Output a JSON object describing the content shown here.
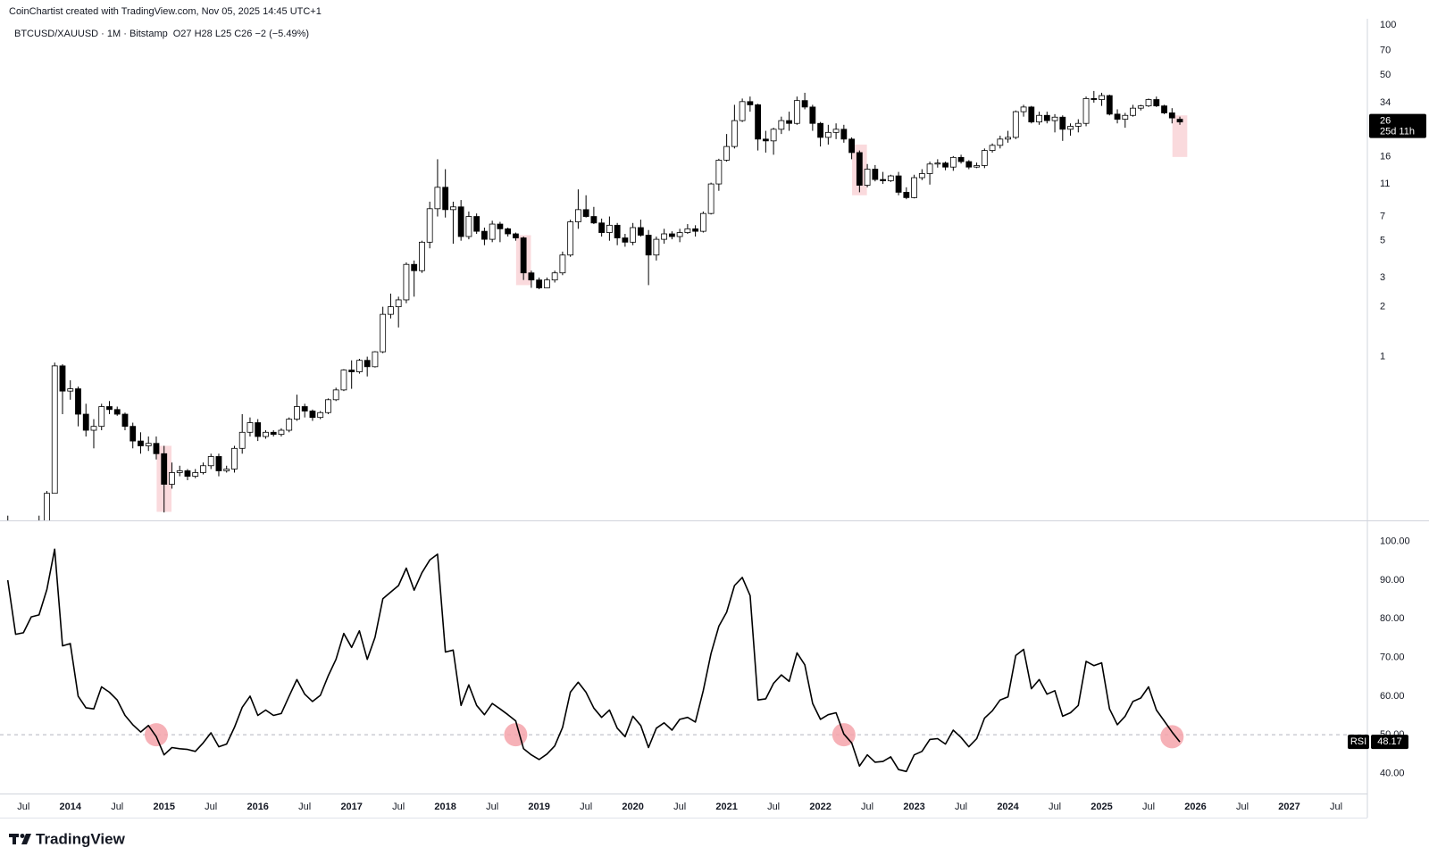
{
  "header": "CoinChartist created with TradingView.com, Nov 05, 2025 14:45 UTC+1",
  "footer_logo": "TradingView",
  "chart_data": {
    "type": "candlestick",
    "title": "BTCUSD/XAUUSD · 1M · Bitstamp",
    "ohlc_label": "O27  H28  L25  C26  −2 (−5.49%)",
    "countdown": "25d 11h",
    "log": true,
    "grid": false,
    "up_color": "#ffffff",
    "down_color": "#000000",
    "highlight_color": "#f9d3d7",
    "ylim": [
      0.103,
      109
    ],
    "yticks": [
      1,
      2,
      3,
      5,
      7,
      11,
      16,
      34,
      50,
      70,
      100
    ],
    "xlim": [
      "2013-04",
      "2027-11"
    ],
    "xticks": [
      {
        "value": "2013-07",
        "label": "Jul"
      },
      {
        "value": "2014-01",
        "label": "2014"
      },
      {
        "value": "2014-07",
        "label": "Jul"
      },
      {
        "value": "2015-01",
        "label": "2015"
      },
      {
        "value": "2015-07",
        "label": "Jul"
      },
      {
        "value": "2016-01",
        "label": "2016"
      },
      {
        "value": "2016-07",
        "label": "Jul"
      },
      {
        "value": "2017-01",
        "label": "2017"
      },
      {
        "value": "2017-07",
        "label": "Jul"
      },
      {
        "value": "2018-01",
        "label": "2018"
      },
      {
        "value": "2018-07",
        "label": "Jul"
      },
      {
        "value": "2019-01",
        "label": "2019"
      },
      {
        "value": "2019-07",
        "label": "Jul"
      },
      {
        "value": "2020-01",
        "label": "2020"
      },
      {
        "value": "2020-07",
        "label": "Jul"
      },
      {
        "value": "2021-01",
        "label": "2021"
      },
      {
        "value": "2021-07",
        "label": "Jul"
      },
      {
        "value": "2022-01",
        "label": "2022"
      },
      {
        "value": "2022-07",
        "label": "Jul"
      },
      {
        "value": "2023-01",
        "label": "2023"
      },
      {
        "value": "2023-07",
        "label": "Jul"
      },
      {
        "value": "2024-01",
        "label": "2024"
      },
      {
        "value": "2024-07",
        "label": "Jul"
      },
      {
        "value": "2025-01",
        "label": "2025"
      },
      {
        "value": "2025-07",
        "label": "Jul"
      },
      {
        "value": "2026-01",
        "label": "2026"
      },
      {
        "value": "2026-07",
        "label": "Jul"
      },
      {
        "value": "2027-01",
        "label": "2027"
      },
      {
        "value": "2027-07",
        "label": "Jul"
      }
    ],
    "x": [
      "2013-05",
      "2013-06",
      "2013-07",
      "2013-08",
      "2013-09",
      "2013-10",
      "2013-11",
      "2013-12",
      "2014-01",
      "2014-02",
      "2014-03",
      "2014-04",
      "2014-05",
      "2014-06",
      "2014-07",
      "2014-08",
      "2014-09",
      "2014-10",
      "2014-11",
      "2014-12",
      "2015-01",
      "2015-02",
      "2015-03",
      "2015-04",
      "2015-05",
      "2015-06",
      "2015-07",
      "2015-08",
      "2015-09",
      "2015-10",
      "2015-11",
      "2015-12",
      "2016-01",
      "2016-02",
      "2016-03",
      "2016-04",
      "2016-05",
      "2016-06",
      "2016-07",
      "2016-08",
      "2016-09",
      "2016-10",
      "2016-11",
      "2016-12",
      "2017-01",
      "2017-02",
      "2017-03",
      "2017-04",
      "2017-05",
      "2017-06",
      "2017-07",
      "2017-08",
      "2017-09",
      "2017-10",
      "2017-11",
      "2017-12",
      "2018-01",
      "2018-02",
      "2018-03",
      "2018-04",
      "2018-05",
      "2018-06",
      "2018-07",
      "2018-08",
      "2018-09",
      "2018-10",
      "2018-11",
      "2018-12",
      "2019-01",
      "2019-02",
      "2019-03",
      "2019-04",
      "2019-05",
      "2019-06",
      "2019-07",
      "2019-08",
      "2019-09",
      "2019-10",
      "2019-11",
      "2019-12",
      "2020-01",
      "2020-02",
      "2020-03",
      "2020-04",
      "2020-05",
      "2020-06",
      "2020-07",
      "2020-08",
      "2020-09",
      "2020-10",
      "2020-11",
      "2020-12",
      "2021-01",
      "2021-02",
      "2021-03",
      "2021-04",
      "2021-05",
      "2021-06",
      "2021-07",
      "2021-08",
      "2021-09",
      "2021-10",
      "2021-11",
      "2021-12",
      "2022-01",
      "2022-02",
      "2022-03",
      "2022-04",
      "2022-05",
      "2022-06",
      "2022-07",
      "2022-08",
      "2022-09",
      "2022-10",
      "2022-11",
      "2022-12",
      "2023-01",
      "2023-02",
      "2023-03",
      "2023-04",
      "2023-05",
      "2023-06",
      "2023-07",
      "2023-08",
      "2023-09",
      "2023-10",
      "2023-11",
      "2023-12",
      "2024-01",
      "2024-02",
      "2024-03",
      "2024-04",
      "2024-05",
      "2024-06",
      "2024-07",
      "2024-08",
      "2024-09",
      "2024-10",
      "2024-11",
      "2024-12",
      "2025-01",
      "2025-02",
      "2025-03",
      "2025-04",
      "2025-05",
      "2025-06",
      "2025-07",
      "2025-08",
      "2025-09",
      "2025-10",
      "2025-11"
    ],
    "open": [
      0.095,
      0.087,
      0.079,
      0.08,
      0.1,
      0.1,
      0.15,
      0.88,
      0.62,
      0.64,
      0.45,
      0.36,
      0.38,
      0.5,
      0.48,
      0.45,
      0.38,
      0.31,
      0.29,
      0.3,
      0.26,
      0.17,
      0.2,
      0.205,
      0.19,
      0.2,
      0.22,
      0.25,
      0.205,
      0.21,
      0.28,
      0.35,
      0.4,
      0.33,
      0.35,
      0.34,
      0.36,
      0.42,
      0.5,
      0.47,
      0.43,
      0.46,
      0.55,
      0.63,
      0.83,
      0.81,
      0.95,
      0.87,
      1.07,
      1.8,
      2.0,
      2.2,
      3.6,
      3.3,
      4.9,
      7.8,
      10.5,
      7.7,
      8.0,
      5.3,
      7.0,
      5.7,
      5.1,
      6.3,
      5.9,
      5.5,
      5.2,
      3.2,
      2.9,
      2.6,
      2.9,
      3.2,
      4.1,
      6.5,
      7.7,
      7.0,
      6.4,
      5.6,
      6.2,
      5.2,
      4.9,
      6.0,
      5.4,
      4.1,
      5.1,
      5.5,
      5.3,
      5.6,
      5.9,
      5.7,
      7.3,
      11.0,
      15.3,
      18.5,
      26.5,
      34.5,
      33,
      20.5,
      20,
      23.5,
      26.5,
      25.5,
      35,
      32,
      25.5,
      21,
      22.5,
      23.5,
      20.5,
      17,
      10.8,
      13.5,
      11.7,
      11.5,
      12.3,
      9.8,
      9.1,
      12.0,
      12.7,
      14.5,
      14.7,
      13.9,
      15.9,
      15,
      13.9,
      14.2,
      17.5,
      18.8,
      20.5,
      21,
      30,
      32,
      26,
      28.5,
      26.5,
      27.8,
      23.5,
      24.5,
      25.5,
      36,
      35.5,
      37.5,
      29,
      27,
      28.5,
      31.5,
      32.5,
      35.5,
      32.5,
      29.5,
      27
    ],
    "high": [
      0.11,
      0.1,
      0.085,
      0.1,
      0.11,
      0.155,
      0.92,
      0.9,
      0.72,
      0.66,
      0.52,
      0.42,
      0.52,
      0.54,
      0.5,
      0.46,
      0.4,
      0.35,
      0.33,
      0.33,
      0.29,
      0.23,
      0.22,
      0.21,
      0.21,
      0.23,
      0.26,
      0.26,
      0.22,
      0.29,
      0.45,
      0.43,
      0.42,
      0.36,
      0.36,
      0.37,
      0.43,
      0.59,
      0.52,
      0.48,
      0.47,
      0.56,
      0.65,
      0.84,
      0.95,
      0.97,
      1.0,
      1.08,
      2.0,
      2.4,
      2.3,
      3.7,
      3.8,
      5.0,
      8.6,
      15.5,
      13.5,
      8.6,
      8.8,
      7.5,
      7.3,
      6.0,
      6.6,
      6.5,
      6.0,
      5.6,
      5.3,
      3.3,
      3.0,
      3.0,
      3.3,
      4.3,
      6.7,
      10.2,
      9.4,
      8.0,
      6.8,
      7.0,
      6.4,
      5.5,
      6.4,
      6.7,
      5.8,
      5.3,
      5.9,
      5.7,
      5.9,
      6.3,
      6.2,
      7.5,
      11.2,
      15.6,
      22,
      33,
      36,
      37,
      33.5,
      23,
      24,
      28,
      30,
      37,
      39,
      33,
      26,
      25,
      25.5,
      25,
      21,
      17.5,
      14.5,
      14.3,
      13,
      12.5,
      13,
      10.5,
      12.5,
      13.5,
      15,
      15.5,
      15,
      16.2,
      16.5,
      15.3,
      14.8,
      18,
      19.3,
      21.5,
      23,
      30.5,
      33,
      32.5,
      30,
      30,
      29,
      28.5,
      25.5,
      27,
      37,
      40,
      39,
      38,
      31,
      29.5,
      33,
      33,
      36,
      37,
      33,
      31.5,
      28
    ],
    "low": [
      0.08,
      0.07,
      0.06,
      0.075,
      0.09,
      0.09,
      0.15,
      0.45,
      0.55,
      0.38,
      0.33,
      0.28,
      0.36,
      0.45,
      0.44,
      0.36,
      0.28,
      0.26,
      0.27,
      0.24,
      0.115,
      0.16,
      0.19,
      0.18,
      0.185,
      0.195,
      0.21,
      0.19,
      0.2,
      0.2,
      0.26,
      0.33,
      0.31,
      0.32,
      0.33,
      0.33,
      0.35,
      0.41,
      0.43,
      0.41,
      0.42,
      0.45,
      0.54,
      0.62,
      0.64,
      0.79,
      0.76,
      0.86,
      1.05,
      1.7,
      1.5,
      2.1,
      2.3,
      3.2,
      4.5,
      7.0,
      6.9,
      4.8,
      5.0,
      5.1,
      5.5,
      4.7,
      4.9,
      4.9,
      5.3,
      5.0,
      2.9,
      2.6,
      2.55,
      2.6,
      2.8,
      3.1,
      4.0,
      5.9,
      6.9,
      6.3,
      5.3,
      5.0,
      4.7,
      4.6,
      4.7,
      5.3,
      2.7,
      3.8,
      4.8,
      5.1,
      4.9,
      5.5,
      5.3,
      5.6,
      7.2,
      10.0,
      15,
      18,
      26,
      30,
      17.5,
      17,
      16.5,
      22,
      23,
      25,
      31,
      23,
      18.5,
      19,
      20.5,
      19.5,
      15.5,
      9.8,
      10.5,
      11.4,
      11,
      11.3,
      9.4,
      8.9,
      9.0,
      11.6,
      10.9,
      13.8,
      13.3,
      13.2,
      14.6,
      13.5,
      13.7,
      13.7,
      17,
      18,
      19.5,
      20.5,
      28,
      25.5,
      25,
      25.5,
      22.5,
      20,
      21.5,
      22.5,
      24.5,
      34,
      32.5,
      28.5,
      25.5,
      24,
      28,
      30.5,
      32,
      32,
      29,
      25.5,
      25
    ],
    "close": [
      0.087,
      0.079,
      0.08,
      0.1,
      0.1,
      0.15,
      0.88,
      0.62,
      0.64,
      0.45,
      0.36,
      0.38,
      0.5,
      0.48,
      0.45,
      0.38,
      0.31,
      0.29,
      0.3,
      0.26,
      0.17,
      0.2,
      0.205,
      0.19,
      0.2,
      0.22,
      0.25,
      0.205,
      0.21,
      0.28,
      0.35,
      0.4,
      0.33,
      0.35,
      0.34,
      0.36,
      0.42,
      0.5,
      0.47,
      0.43,
      0.46,
      0.55,
      0.63,
      0.83,
      0.81,
      0.95,
      0.87,
      1.07,
      1.8,
      2.0,
      2.2,
      3.6,
      3.3,
      4.9,
      7.8,
      10.5,
      7.7,
      8.0,
      5.3,
      7.0,
      5.7,
      5.1,
      6.3,
      5.9,
      5.5,
      5.2,
      3.2,
      2.9,
      2.6,
      2.9,
      3.2,
      4.1,
      6.5,
      7.7,
      7.0,
      6.4,
      5.6,
      6.2,
      5.2,
      4.9,
      6.0,
      5.4,
      4.1,
      5.1,
      5.5,
      5.3,
      5.6,
      5.9,
      5.7,
      7.3,
      11.0,
      15.3,
      18.5,
      26.5,
      34.5,
      33,
      20.5,
      20,
      23.5,
      26.5,
      25.5,
      35,
      32,
      25.5,
      21,
      22.5,
      23.5,
      20.5,
      17,
      10.8,
      13.5,
      11.7,
      11.5,
      12.3,
      9.8,
      9.1,
      12.0,
      12.7,
      14.5,
      14.7,
      13.9,
      15.9,
      15,
      13.9,
      14.2,
      17.5,
      18.8,
      20.5,
      21,
      30,
      32,
      26,
      28.5,
      26.5,
      27.8,
      23.5,
      24.5,
      25.5,
      36,
      35.5,
      37.5,
      29,
      27,
      28.5,
      31.5,
      32.5,
      35.5,
      32.5,
      29.5,
      27.5,
      26
    ],
    "highlight_boxes": [
      {
        "x0": "2015-01",
        "x1": "2015-01",
        "low": 0.116,
        "high": 0.29
      },
      {
        "x0": "2018-11",
        "x1": "2018-11",
        "low": 2.7,
        "high": 5.4
      },
      {
        "x0": "2022-06",
        "x1": "2022-06",
        "low": 9.4,
        "high": 19
      },
      {
        "x0": "2025-11",
        "x1": "2025-11",
        "low": 16,
        "high": 28.5
      }
    ],
    "rsi": {
      "type": "line",
      "name": "RSI",
      "color": "#000000",
      "ylim": [
        34.8,
        105
      ],
      "yticks": [
        {
          "value": 40,
          "label": "40.00"
        },
        {
          "value": 50,
          "label": "50.00"
        },
        {
          "value": 60,
          "label": "60.00"
        },
        {
          "value": 70,
          "label": "70.00"
        },
        {
          "value": 80,
          "label": "80.00"
        },
        {
          "value": 90,
          "label": "90.00"
        },
        {
          "value": 100,
          "label": "100.00"
        }
      ],
      "reference_line": 50,
      "marker_color": "#f4a3aa",
      "markers": [
        {
          "x": "2014-12",
          "y": 50
        },
        {
          "x": "2018-10",
          "y": 50
        },
        {
          "x": "2022-04",
          "y": 50
        },
        {
          "x": "2025-10",
          "y": 49.5
        }
      ],
      "values": [
        90,
        76,
        76.4,
        80.5,
        81,
        87.6,
        98,
        73,
        73.6,
        60,
        57,
        56.7,
        62.4,
        61,
        59,
        55,
        52.6,
        50.7,
        52.4,
        49.5,
        44.8,
        46.7,
        46.4,
        46.2,
        45.7,
        47.9,
        50.5,
        46.9,
        47.6,
        51.9,
        57.1,
        60,
        55,
        56.4,
        55,
        55.5,
        60,
        64.3,
        60.5,
        58.6,
        60.2,
        65.2,
        69.5,
        76.2,
        72.6,
        76.9,
        69.5,
        75.2,
        85.2,
        86.9,
        88.6,
        93.1,
        87.4,
        91.9,
        95.2,
        96.7,
        71.4,
        71.9,
        57.6,
        62.9,
        57.6,
        55.2,
        58.1,
        56.7,
        55.2,
        53.6,
        46.4,
        44.8,
        43.6,
        45,
        47.1,
        51.9,
        61,
        63.6,
        61,
        56.9,
        54.5,
        56.4,
        51.7,
        49.5,
        54.8,
        52.4,
        46.7,
        51.7,
        53.1,
        51.2,
        54,
        54.5,
        53.3,
        61.4,
        71,
        78.1,
        81.7,
        88.6,
        90.7,
        86,
        59,
        59.3,
        63.3,
        65.5,
        63.8,
        71.2,
        68.1,
        58.1,
        54,
        55.2,
        55.7,
        50.2,
        47.9,
        41.9,
        44.8,
        42.9,
        43.1,
        44.3,
        41,
        40.5,
        44.8,
        45.7,
        48.8,
        49,
        47.6,
        51.2,
        49.3,
        46.9,
        49,
        54.3,
        56.2,
        59,
        59.8,
        70.5,
        72.1,
        61.9,
        64.3,
        60.5,
        61.4,
        54.8,
        55.7,
        57.6,
        69,
        67.9,
        68.6,
        56.7,
        52.6,
        54.8,
        58.6,
        59.5,
        62.4,
        56.4,
        53.6,
        50.7,
        48.17
      ]
    }
  }
}
